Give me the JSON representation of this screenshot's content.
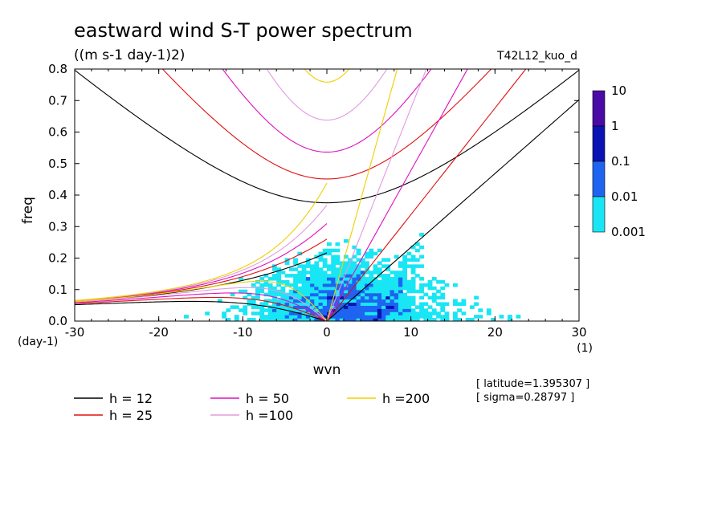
{
  "chart_data": {
    "type": "heatmap",
    "title": "eastward wind S-T power spectrum",
    "subtitle": "((m s-1 day-1)2)",
    "run_label": "T42L12_kuo_d",
    "xlabel": "wvn",
    "x_unit": "(1)",
    "ylabel": "freq",
    "y_unit": "(day-1)",
    "xlim": [
      -30,
      30
    ],
    "ylim": [
      0,
      0.8
    ],
    "x_ticks": [
      -30,
      -20,
      -10,
      0,
      10,
      20,
      30
    ],
    "y_ticks": [
      0.0,
      0.1,
      0.2,
      0.3,
      0.4,
      0.5,
      0.6,
      0.7,
      0.8
    ],
    "y_tick_labels": [
      "0.0",
      "0.1",
      "0.2",
      "0.3",
      "0.4",
      "0.5",
      "0.6",
      "0.7",
      "0.8"
    ],
    "colorbar": {
      "levels": [
        "10",
        "1",
        "0.1",
        "0.01",
        "0.001"
      ],
      "colors": [
        "#4a0aa6",
        "#0a14b4",
        "#1e64f0",
        "#19e6f5"
      ]
    },
    "dispersion_curves": [
      {
        "label": "h = 12",
        "h": 12,
        "color": "#000000"
      },
      {
        "label": "h = 25",
        "h": 25,
        "color": "#e01010"
      },
      {
        "label": "h = 50",
        "h": 50,
        "color": "#e010c0"
      },
      {
        "label": "h =100",
        "h": 100,
        "color": "#e29ae0"
      },
      {
        "label": "h =200",
        "h": 200,
        "color": "#f0d000"
      }
    ],
    "info": {
      "latitude": "[ latitude=1.395307 ]",
      "sigma": "[ sigma=0.28797 ]"
    }
  }
}
